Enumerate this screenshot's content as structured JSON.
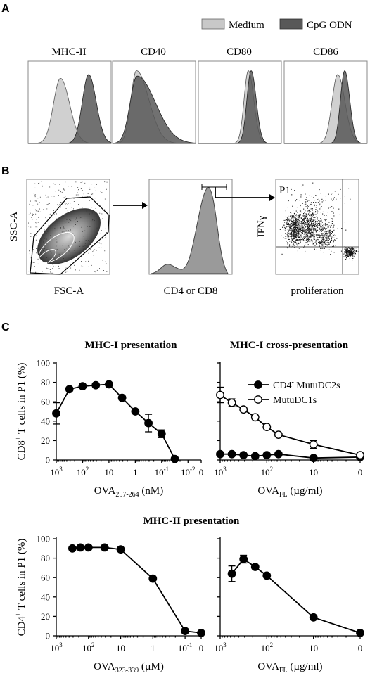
{
  "panels": {
    "A": "A",
    "B": "B",
    "C": "C"
  },
  "panel_a": {
    "legend": [
      {
        "label": "Medium",
        "color": "#c8c8c8"
      },
      {
        "label": "CpG ODN",
        "color": "#585858"
      }
    ],
    "markers": [
      "MHC-II",
      "CD40",
      "CD80",
      "CD86"
    ]
  },
  "panel_b": {
    "plot1": {
      "ylabel": "SSC-A",
      "xlabel": "FSC-A"
    },
    "plot2": {
      "xlabel": "CD4 or CD8"
    },
    "plot3": {
      "gate": "P1",
      "ylabel": "IFNγ",
      "xlabel": "proliferation"
    }
  },
  "chart_data": [
    {
      "type": "line",
      "title": "MHC-I presentation",
      "ylabel": "CD8+ T cells in P1 (%)",
      "ylabel_main": "CD8",
      "ylabel_sup": "+",
      "ylabel_rest": " T cells in P1 (%)",
      "xlabel_main": "OVA",
      "xlabel_sub": "257-264",
      "xlabel_rest": " (nM)",
      "ylim": [
        0,
        100
      ],
      "yticks": [
        "0",
        "20",
        "40",
        "60",
        "80",
        "100"
      ],
      "xticks": [
        {
          "base": "10",
          "exp": "3"
        },
        {
          "base": "10",
          "exp": "2"
        },
        {
          "base": "10",
          "exp": ""
        },
        {
          "base": "1",
          "exp": ""
        },
        {
          "base": "10",
          "exp": "-1"
        },
        {
          "base": "10",
          "exp": "-2"
        },
        {
          "base": "0",
          "exp": ""
        }
      ],
      "x_log10": [
        3,
        2.5,
        2,
        1.5,
        1,
        0.5,
        0,
        -0.5,
        -1,
        -1.5
      ],
      "series": [
        {
          "values": [
            48,
            73,
            76,
            77,
            78,
            64,
            50,
            38,
            27,
            1
          ],
          "errors": [
            11,
            0,
            0,
            0,
            0,
            0,
            0,
            9,
            4,
            0
          ],
          "marker": "filled"
        }
      ]
    },
    {
      "type": "line",
      "title": "MHC-I cross-presentation",
      "xlabel_main": "OVA",
      "xlabel_sub": "FL",
      "xlabel_rest": " (µg/ml)",
      "ylim": [
        0,
        100
      ],
      "xticks": [
        {
          "base": "10",
          "exp": "3"
        },
        {
          "base": "10",
          "exp": "2"
        },
        {
          "base": "10",
          "exp": ""
        },
        {
          "base": "0",
          "exp": ""
        }
      ],
      "x_log10": [
        3,
        2.75,
        2.5,
        2.25,
        2,
        1.75,
        1,
        0
      ],
      "legend_items": [
        {
          "label_main": "CD4",
          "label_sup": "-",
          "label_rest": " MutuDC2s",
          "marker": "filled"
        },
        {
          "label_main": "MutuDC1s",
          "label_sup": "",
          "label_rest": "",
          "marker": "open"
        }
      ],
      "series": [
        {
          "name": "CD4- MutuDC2s",
          "marker": "filled",
          "values": [
            6,
            6,
            5,
            4,
            5,
            6,
            2,
            3
          ],
          "errors": [
            0,
            0,
            0,
            0,
            0,
            0,
            0,
            0
          ]
        },
        {
          "name": "MutuDC1s",
          "marker": "open",
          "values": [
            67,
            59,
            52,
            44,
            34,
            26,
            16,
            5
          ],
          "errors": [
            8,
            4,
            0,
            0,
            0,
            0,
            4,
            0
          ]
        }
      ]
    },
    {
      "type": "line",
      "title": "MHC-II presentation",
      "ylabel": "CD4+ T cells in P1 (%)",
      "ylabel_main": "CD4",
      "ylabel_sup": "+",
      "ylabel_rest": " T cells in P1 (%)",
      "xlabel_main": "OVA",
      "xlabel_sub": "323-339",
      "xlabel_rest": " (µM)",
      "ylim": [
        0,
        100
      ],
      "yticks": [
        "0",
        "20",
        "40",
        "60",
        "80",
        "100"
      ],
      "xticks": [
        {
          "base": "10",
          "exp": "3"
        },
        {
          "base": "10",
          "exp": "2"
        },
        {
          "base": "10",
          "exp": ""
        },
        {
          "base": "1",
          "exp": ""
        },
        {
          "base": "10",
          "exp": "-1"
        },
        {
          "base": "0",
          "exp": ""
        }
      ],
      "x_log10": [
        2.5,
        2.25,
        2,
        1.5,
        1,
        0,
        -1,
        -1.5
      ],
      "series": [
        {
          "marker": "filled",
          "values": [
            90,
            91,
            91,
            91,
            89,
            59,
            5,
            3
          ],
          "errors": [
            0,
            0,
            0,
            0,
            0,
            0,
            0,
            0
          ]
        }
      ]
    },
    {
      "type": "line",
      "title": "",
      "xlabel_main": "OVA",
      "xlabel_sub": "FL",
      "xlabel_rest": " (µg/ml)",
      "ylim": [
        0,
        100
      ],
      "xticks": [
        {
          "base": "10",
          "exp": "3"
        },
        {
          "base": "10",
          "exp": "2"
        },
        {
          "base": "10",
          "exp": ""
        },
        {
          "base": "0",
          "exp": ""
        }
      ],
      "x_log10": [
        2.75,
        2.5,
        2.25,
        2,
        1,
        0
      ],
      "series": [
        {
          "marker": "filled",
          "values": [
            64,
            79,
            71,
            62,
            19,
            3
          ],
          "errors": [
            8,
            4,
            0,
            0,
            0,
            0
          ]
        }
      ]
    }
  ]
}
